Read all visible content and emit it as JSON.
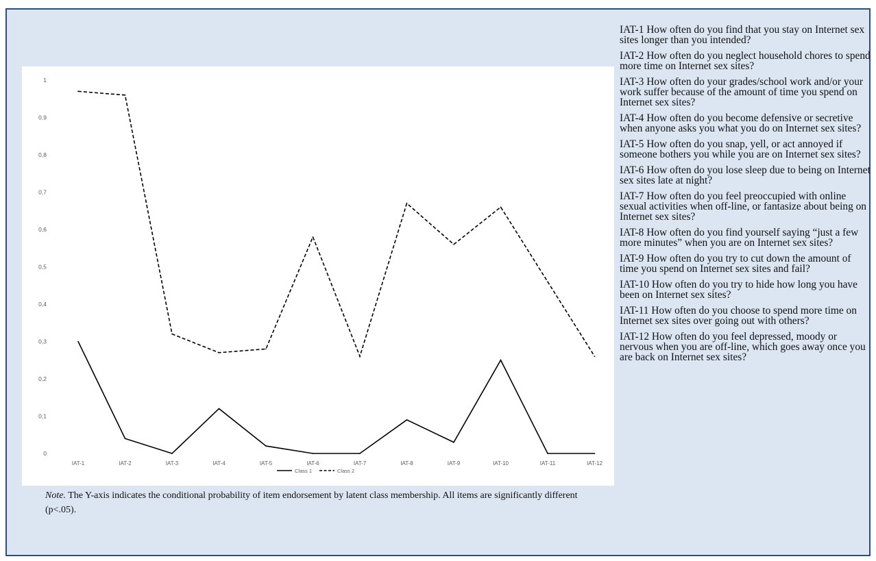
{
  "chart_data": {
    "type": "line",
    "title": "",
    "xlabel": "",
    "ylabel": "",
    "categories": [
      "IAT-1",
      "IAT-2",
      "IAT-3",
      "IAT-4",
      "IAT-5",
      "IAT-6",
      "IAT-7",
      "IAT-8",
      "IAT-9",
      "IAT-10",
      "IAT-11",
      "IAT-12"
    ],
    "y_ticks": [
      "0",
      "0,1",
      "0,2",
      "0,3",
      "0,4",
      "0,5",
      "0,6",
      "0,7",
      "0,8",
      "0,9",
      "1"
    ],
    "ylim": [
      0,
      1
    ],
    "grid": false,
    "legend_position": "bottom-center",
    "series": [
      {
        "name": "Class 1",
        "line_style": "solid",
        "color": "#000000",
        "values": [
          0.3,
          0.04,
          0.0,
          0.12,
          0.02,
          0.0,
          0.0,
          0.09,
          0.03,
          0.25,
          0.0,
          0.0
        ]
      },
      {
        "name": "Class 2",
        "line_style": "dashed",
        "color": "#000000",
        "values": [
          0.97,
          0.96,
          0.32,
          0.27,
          0.28,
          0.58,
          0.26,
          0.67,
          0.56,
          0.66,
          0.46,
          0.26
        ]
      }
    ]
  },
  "note": {
    "lead": "Note.",
    "text": " The Y-axis  indicates the conditional probability of item endorsement by latent class membership.  All items are significantly different (p<.05)."
  },
  "items": [
    "IAT-1 How often do you find that you stay on Internet sex sites longer than you intended?",
    "IAT-2 How often do you neglect household chores to spend more time on Internet sex sites?",
    "IAT-3 How often do your grades/school work and/or your work suffer because of the amount of time you spend on Internet sex sites?",
    "IAT-4 How often do you become defensive or secretive when anyone asks you what you do on Internet sex sites?",
    "IAT-5 How often do you snap, yell,  or act annoyed if someone bothers you while you are on Internet sex sites?",
    "IAT-6 How often do you lose sleep due to being on Internet sex sites late at night?",
    "IAT-7 How often do you feel preoccupied with online sexual activities when off-line, or fantasize about being on Internet sex sites?",
    "IAT-8 How often do you find yourself saying “just a few more minutes” when you are on Internet sex sites?",
    "IAT-9 How often do you try to cut down the amount of time you spend on Internet sex sites and fail?",
    "IAT-10 How often do you try to hide how long you have been on Internet sex sites?",
    "IAT-11 How often do you choose to spend more time on Internet sex sites over going  out with others?",
    "IAT-12 How often do you feel depressed, moody or nervous when you are off-line, which goes away once you are back on Internet sex sites?"
  ]
}
